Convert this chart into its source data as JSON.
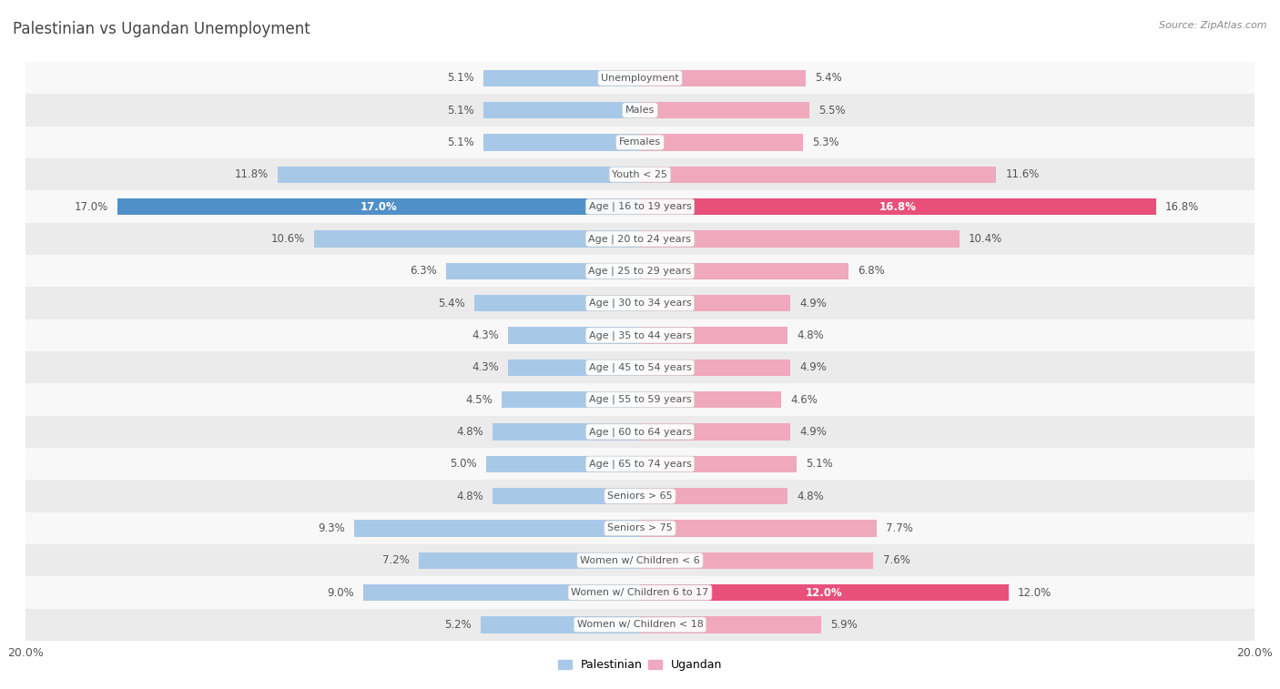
{
  "title": "Palestinian vs Ugandan Unemployment",
  "source": "Source: ZipAtlas.com",
  "categories": [
    "Unemployment",
    "Males",
    "Females",
    "Youth < 25",
    "Age | 16 to 19 years",
    "Age | 20 to 24 years",
    "Age | 25 to 29 years",
    "Age | 30 to 34 years",
    "Age | 35 to 44 years",
    "Age | 45 to 54 years",
    "Age | 55 to 59 years",
    "Age | 60 to 64 years",
    "Age | 65 to 74 years",
    "Seniors > 65",
    "Seniors > 75",
    "Women w/ Children < 6",
    "Women w/ Children 6 to 17",
    "Women w/ Children < 18"
  ],
  "palestinian": [
    5.1,
    5.1,
    5.1,
    11.8,
    17.0,
    10.6,
    6.3,
    5.4,
    4.3,
    4.3,
    4.5,
    4.8,
    5.0,
    4.8,
    9.3,
    7.2,
    9.0,
    5.2
  ],
  "ugandan": [
    5.4,
    5.5,
    5.3,
    11.6,
    16.8,
    10.4,
    6.8,
    4.9,
    4.8,
    4.9,
    4.6,
    4.9,
    5.1,
    4.8,
    7.7,
    7.6,
    12.0,
    5.9
  ],
  "pal_highlighted": [
    4
  ],
  "uga_highlighted": [
    4,
    16
  ],
  "palestinian_color": "#a8c8e8",
  "ugandan_color": "#f0a8bc",
  "palestinian_highlight": "#5090c8",
  "ugandan_highlight": "#e8507a",
  "axis_limit": 20.0,
  "bar_height": 0.52,
  "bg_color_odd": "#ebebeb",
  "bg_color_even": "#f8f8f8",
  "label_fontsize": 8.5,
  "title_fontsize": 12,
  "category_fontsize": 8.0,
  "title_color": "#444444",
  "label_color": "#555555",
  "category_color": "#555555",
  "source_color": "#888888"
}
